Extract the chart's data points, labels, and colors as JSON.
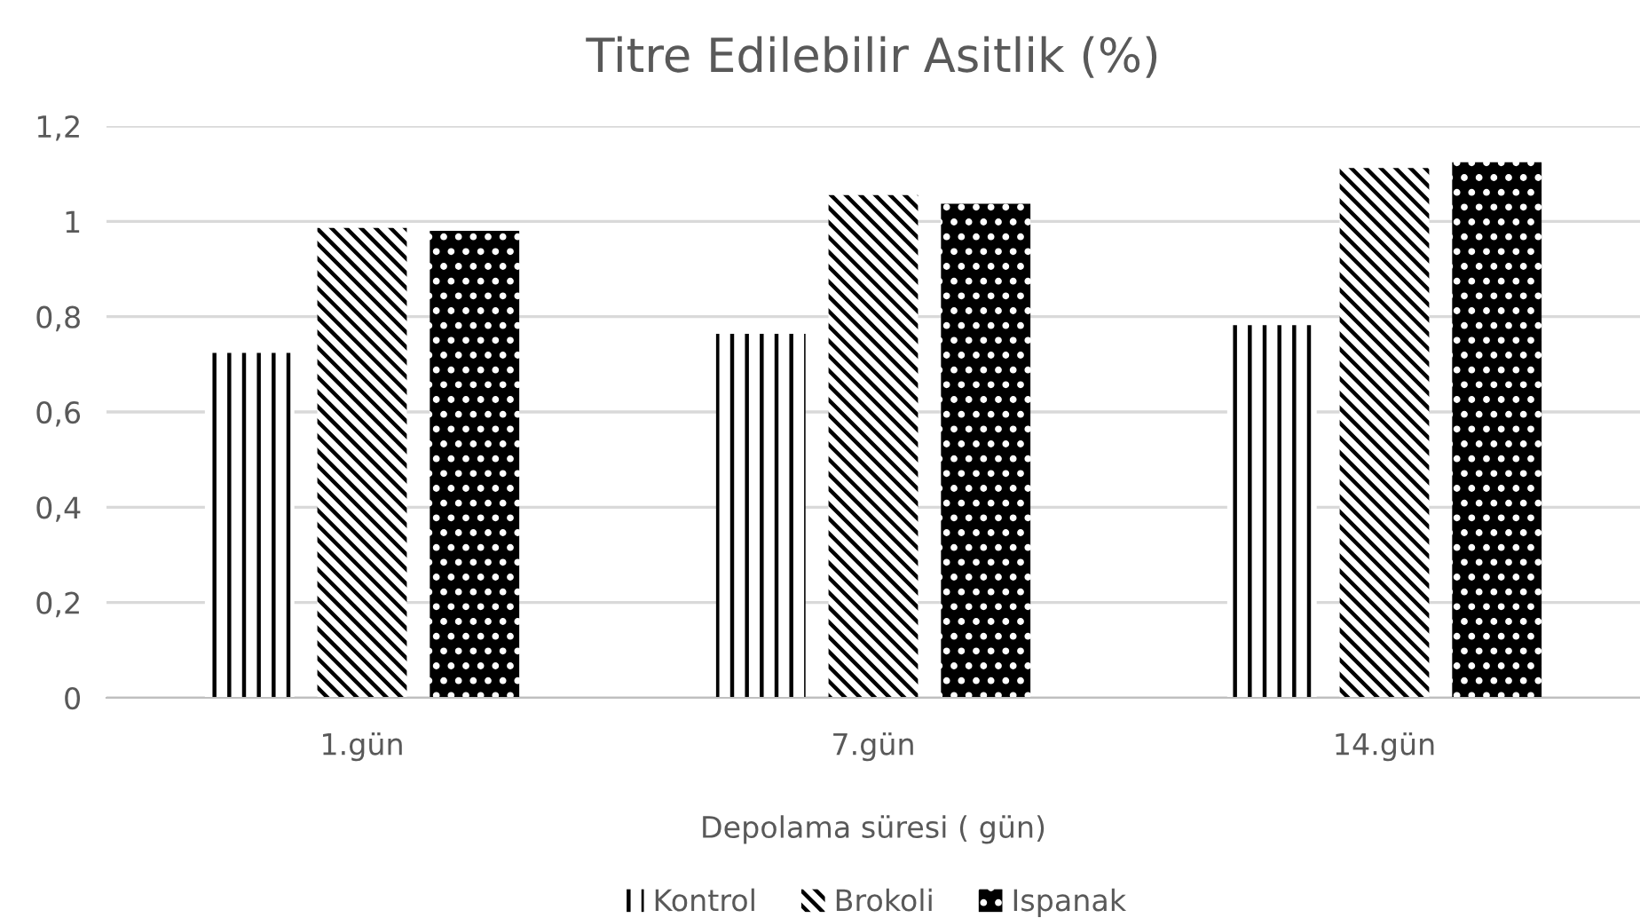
{
  "chart_data": {
    "type": "bar",
    "title": "Titre Edilebilir Asitlik (%)",
    "xlabel": "Depolama süresi ( gün)",
    "categories": [
      "1.gün",
      "7.gün",
      "14.gün"
    ],
    "series": [
      {
        "name": "Kontrol",
        "color": "#000000",
        "values": [
          0.724,
          0.764,
          0.782
        ]
      },
      {
        "name": "Brokoli",
        "color": "#000000",
        "values": [
          0.986,
          1.055,
          1.112
        ]
      },
      {
        "name": "Ispanak",
        "color": "#000000",
        "values": [
          0.98,
          1.037,
          1.124
        ]
      }
    ],
    "ylim": [
      0,
      1.2
    ],
    "yticks": [
      {
        "value": 0,
        "label": "0"
      },
      {
        "value": 0.2,
        "label": "0,2"
      },
      {
        "value": 0.4,
        "label": "0,4"
      },
      {
        "value": 0.6,
        "label": "0,6"
      },
      {
        "value": 0.8,
        "label": "0,8"
      },
      {
        "value": 1,
        "label": "1"
      },
      {
        "value": 1.2,
        "label": "1,2"
      }
    ],
    "grid": "y",
    "legend": "bottom"
  }
}
